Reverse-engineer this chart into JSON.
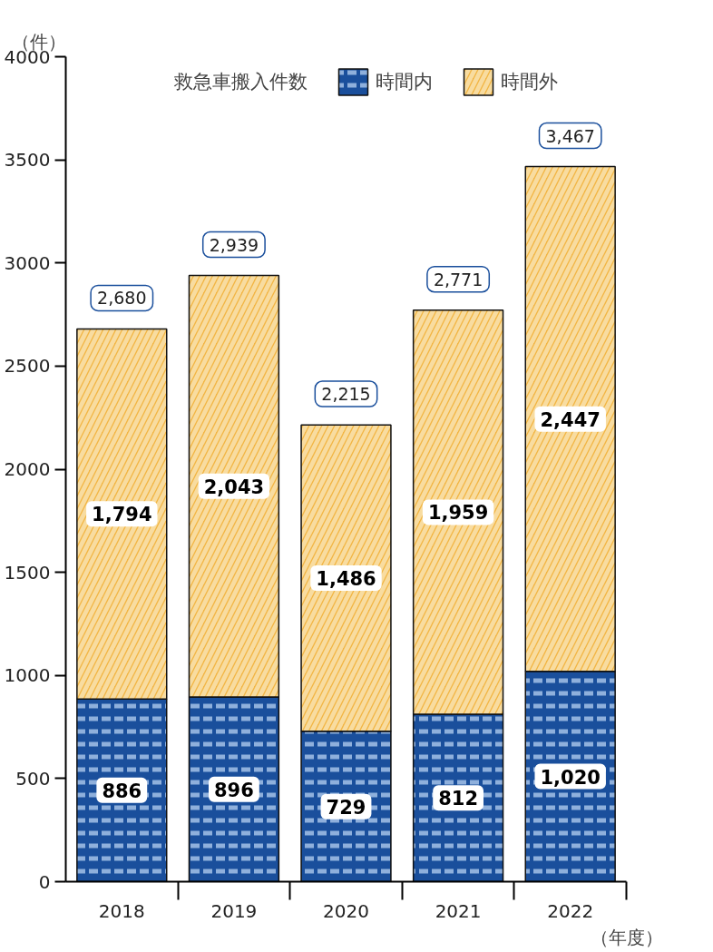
{
  "chart_data": {
    "type": "bar",
    "stacked": true,
    "categories": [
      "2018",
      "2019",
      "2020",
      "2021",
      "2022"
    ],
    "series": [
      {
        "name": "時間内",
        "color": "#1a4f9c",
        "values": [
          886,
          896,
          729,
          812,
          1020
        ],
        "value_labels": [
          "886",
          "896",
          "729",
          "812",
          "1,020"
        ]
      },
      {
        "name": "時間外",
        "color": "#f2b544",
        "values": [
          1794,
          2043,
          1486,
          1959,
          2447
        ],
        "value_labels": [
          "1,794",
          "2,043",
          "1,486",
          "1,959",
          "2,447"
        ]
      }
    ],
    "totals": [
      "2,680",
      "2,939",
      "2,215",
      "2,771",
      "3,467"
    ],
    "ylabel": "（件）",
    "xlabel": "（年度）",
    "annotations": [
      "救急車搬入件数"
    ],
    "ylim": [
      0,
      4000
    ],
    "yticks": [
      0,
      500,
      1000,
      1500,
      2000,
      2500,
      3000,
      3500,
      4000
    ],
    "grid": false,
    "legend": "top"
  }
}
